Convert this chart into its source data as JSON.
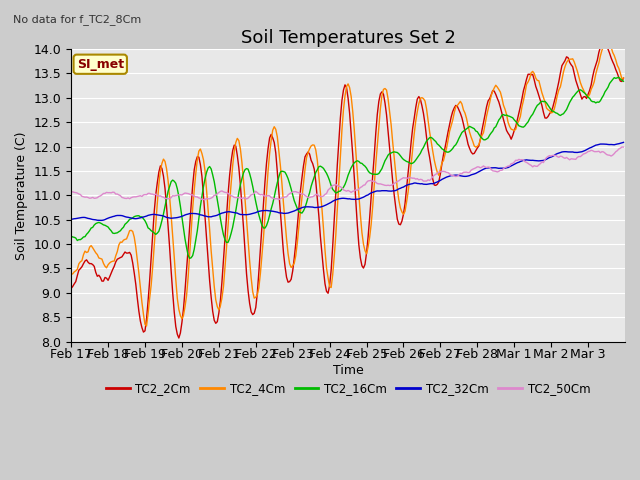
{
  "title": "Soil Temperatures Set 2",
  "subtitle": "No data for f_TC2_8Cm",
  "xlabel": "Time",
  "ylabel": "Soil Temperature (C)",
  "ylim": [
    8.0,
    14.0
  ],
  "yticks": [
    8.0,
    8.5,
    9.0,
    9.5,
    10.0,
    10.5,
    11.0,
    11.5,
    12.0,
    12.5,
    13.0,
    13.5,
    14.0
  ],
  "xtick_labels": [
    "Feb 17",
    "Feb 18",
    "Feb 19",
    "Feb 20",
    "Feb 21",
    "Feb 22",
    "Feb 23",
    "Feb 24",
    "Feb 25",
    "Feb 26",
    "Feb 27",
    "Feb 28",
    "Mar 1",
    "Mar 2",
    "Mar 3"
  ],
  "series_colors": [
    "#cc0000",
    "#ff8800",
    "#00bb00",
    "#0000cc",
    "#dd88cc"
  ],
  "series_labels": [
    "TC2_2Cm",
    "TC2_4Cm",
    "TC2_16Cm",
    "TC2_32Cm",
    "TC2_50Cm"
  ],
  "annotation_text": "SI_met",
  "bg_color": "#cccccc",
  "plot_bg_color": "#e8e8e8",
  "grid_color": "#ffffff",
  "title_fontsize": 13,
  "axis_fontsize": 9,
  "figsize": [
    6.4,
    4.8
  ],
  "dpi": 100
}
